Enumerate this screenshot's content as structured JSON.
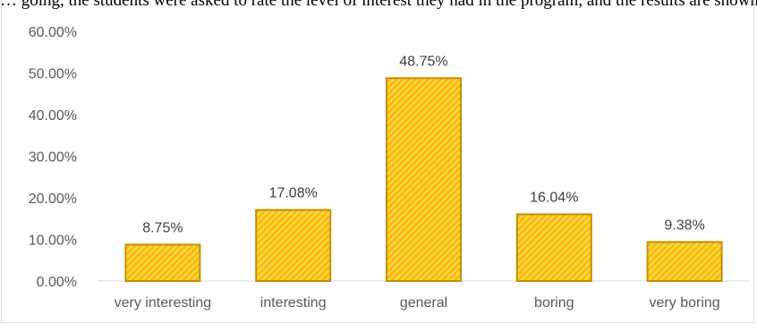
{
  "top_text": "… going, the students were asked to rate the level of interest they had in the program, and the results are shown as percentages:",
  "colors": {
    "bar_fill": "#ffd23f",
    "bar_stripe": "#f5b800",
    "bar_outline": "#bf9000",
    "axis_text": "#595959",
    "axis_line": "#d9d9d9",
    "label_text": "#404040"
  },
  "chart_data": {
    "type": "bar",
    "title": "",
    "xlabel": "",
    "ylabel": "",
    "categories": [
      "very interesting",
      "interesting",
      "general",
      "boring",
      "very boring"
    ],
    "values": [
      8.75,
      17.08,
      48.75,
      16.04,
      9.38
    ],
    "value_labels": [
      "8.75%",
      "17.08%",
      "48.75%",
      "16.04%",
      "9.38%"
    ],
    "y_ticks": [
      0,
      10,
      20,
      30,
      40,
      50,
      60
    ],
    "y_tick_labels": [
      "0.00%",
      "10.00%",
      "20.00%",
      "30.00%",
      "40.00%",
      "50.00%",
      "60.00%"
    ],
    "ylim": [
      0,
      60
    ],
    "grid": false,
    "legend": "none"
  }
}
